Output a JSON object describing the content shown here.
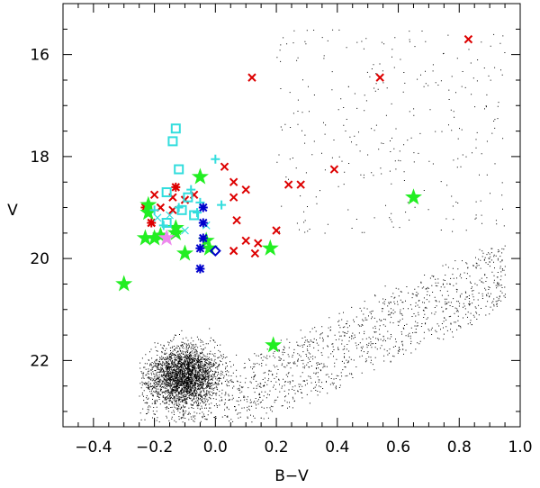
{
  "chart_data": {
    "type": "scatter",
    "title": "",
    "xlabel": "B−V",
    "ylabel": "V",
    "xlim": [
      -0.5,
      1.0
    ],
    "ylim": [
      23.3,
      15.0
    ],
    "y_inverted": true,
    "xticks": [
      -0.4,
      -0.2,
      0.0,
      0.2,
      0.4,
      0.6,
      0.8,
      1.0
    ],
    "xtick_labels": [
      "−0.4",
      "−0.2",
      "0.0",
      "0.2",
      "0.4",
      "0.6",
      "0.8",
      "1.0"
    ],
    "yticks": [
      16,
      18,
      20,
      22
    ],
    "ytick_labels": [
      "16",
      "18",
      "20",
      "22"
    ],
    "grid": false,
    "legend": "none",
    "colors": {
      "field": "#000000",
      "red": "#dd0000",
      "green": "#22ee22",
      "cyan": "#33dddd",
      "blue": "#0000cc",
      "violet": "#ee88ee"
    },
    "field_population": {
      "description_markers": "dot",
      "clump": {
        "x_center": -0.1,
        "y_center": 22.3,
        "x_sd": 0.09,
        "y_sd": 0.5
      },
      "x_range": [
        -0.25,
        0.95
      ],
      "y_range": [
        19.0,
        23.2
      ]
    },
    "series": [
      {
        "marker": "x",
        "color": "#dd0000",
        "points": [
          [
            0.83,
            15.7
          ],
          [
            0.12,
            16.45
          ],
          [
            0.54,
            16.45
          ],
          [
            0.39,
            18.25
          ],
          [
            0.03,
            18.2
          ],
          [
            0.24,
            18.55
          ],
          [
            0.28,
            18.55
          ],
          [
            0.06,
            18.5
          ],
          [
            0.1,
            18.65
          ],
          [
            0.06,
            18.8
          ],
          [
            0.07,
            19.25
          ],
          [
            0.2,
            19.45
          ],
          [
            0.1,
            19.65
          ],
          [
            0.14,
            19.7
          ],
          [
            0.13,
            19.9
          ],
          [
            0.06,
            19.85
          ],
          [
            -0.07,
            18.75
          ],
          [
            -0.1,
            18.85
          ],
          [
            -0.14,
            18.8
          ],
          [
            -0.2,
            18.75
          ],
          [
            -0.18,
            19.0
          ],
          [
            -0.22,
            19.05
          ],
          [
            -0.21,
            19.3
          ],
          [
            -0.14,
            19.05
          ]
        ]
      },
      {
        "marker": "asterisk",
        "color": "#dd0000",
        "points": [
          [
            -0.13,
            18.6
          ],
          [
            -0.23,
            19.0
          ],
          [
            -0.21,
            19.3
          ]
        ]
      },
      {
        "marker": "star",
        "color": "#22ee22",
        "points": [
          [
            -0.05,
            18.4
          ],
          [
            -0.22,
            18.95
          ],
          [
            -0.22,
            19.1
          ],
          [
            -0.13,
            19.4
          ],
          [
            -0.13,
            19.5
          ],
          [
            -0.18,
            19.55
          ],
          [
            -0.23,
            19.6
          ],
          [
            -0.2,
            19.6
          ],
          [
            -0.03,
            19.65
          ],
          [
            -0.02,
            19.8
          ],
          [
            0.18,
            19.8
          ],
          [
            -0.1,
            19.9
          ],
          [
            0.65,
            18.8
          ],
          [
            -0.3,
            20.5
          ],
          [
            0.19,
            21.7
          ]
        ]
      },
      {
        "marker": "square",
        "color": "#33dddd",
        "points": [
          [
            -0.13,
            17.45
          ],
          [
            -0.14,
            17.7
          ],
          [
            -0.12,
            18.25
          ],
          [
            -0.16,
            18.7
          ],
          [
            -0.09,
            18.8
          ],
          [
            -0.16,
            19.3
          ],
          [
            -0.11,
            19.05
          ],
          [
            -0.07,
            19.15
          ]
        ]
      },
      {
        "marker": "plus",
        "color": "#33dddd",
        "points": [
          [
            0.0,
            18.05
          ],
          [
            0.02,
            18.95
          ],
          [
            -0.12,
            19.0
          ],
          [
            -0.06,
            19.1
          ],
          [
            -0.2,
            19.05
          ],
          [
            -0.17,
            19.35
          ],
          [
            -0.08,
            18.65
          ],
          [
            -0.05,
            18.9
          ]
        ]
      },
      {
        "marker": "cross",
        "color": "#33dddd",
        "points": [
          [
            -0.15,
            19.15
          ],
          [
            -0.03,
            19.35
          ],
          [
            -0.1,
            19.45
          ],
          [
            -0.19,
            19.2
          ]
        ]
      },
      {
        "marker": "asterisk",
        "color": "#0000cc",
        "points": [
          [
            -0.04,
            19.0
          ],
          [
            -0.04,
            19.3
          ],
          [
            -0.04,
            19.6
          ],
          [
            -0.05,
            19.8
          ],
          [
            -0.05,
            20.2
          ]
        ]
      },
      {
        "marker": "diamond",
        "color": "#0000cc",
        "points": [
          [
            0.0,
            19.85
          ]
        ]
      },
      {
        "marker": "star",
        "color": "#ee88ee",
        "points": [
          [
            -0.16,
            19.6
          ]
        ]
      }
    ]
  }
}
